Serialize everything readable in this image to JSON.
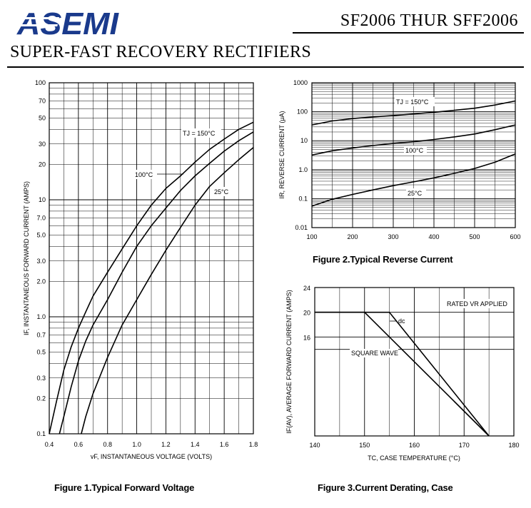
{
  "header": {
    "logo_text": "ASEMI",
    "part_range": "SF2006 THUR SFF2006",
    "family": "SUPER-FAST RECOVERY RECTIFIERS"
  },
  "colors": {
    "logo": "#1a3a8c",
    "ink": "#000000",
    "grid": "#000000"
  },
  "chart_data": [
    {
      "id": "fig1",
      "type": "line",
      "title": "Figure 1.Typical Forward Voltage",
      "xlabel": "vF, INSTANTANEOUS VOLTAGE (VOLTS)",
      "ylabel": "IF, INSTANTANEOUS FORWARD CURRENT (AMPS)",
      "xscale": "linear",
      "yscale": "log",
      "xlim": [
        0.4,
        1.8
      ],
      "ylim": [
        0.1,
        100
      ],
      "grid": true,
      "x_tick_labels": [
        "0.4",
        "0.6",
        "0.8",
        "1.0",
        "1.2",
        "1.4",
        "1.6",
        "1.8"
      ],
      "y_tick_labels": [
        "0.1",
        "0.2",
        "0.3",
        "0.5",
        "0.7",
        "1.0",
        "2.0",
        "3.0",
        "5.0",
        "7.0",
        "10",
        "20",
        "30",
        "50",
        "70",
        "100"
      ],
      "series": [
        {
          "name": "TJ = 150°C",
          "x": [
            0.4,
            0.45,
            0.5,
            0.55,
            0.6,
            0.65,
            0.7,
            0.8,
            0.9,
            1.0,
            1.1,
            1.2,
            1.3,
            1.4,
            1.5,
            1.6,
            1.7,
            1.8
          ],
          "y": [
            0.1,
            0.19,
            0.35,
            0.55,
            0.8,
            1.1,
            1.5,
            2.4,
            3.8,
            6.0,
            9.0,
            12.5,
            16.0,
            21.0,
            27.0,
            33.0,
            40.0,
            46.0
          ]
        },
        {
          "name": "100°C",
          "x": [
            0.47,
            0.5,
            0.55,
            0.6,
            0.65,
            0.7,
            0.8,
            0.9,
            1.0,
            1.1,
            1.2,
            1.3,
            1.4,
            1.5,
            1.6,
            1.7,
            1.8
          ],
          "y": [
            0.1,
            0.14,
            0.25,
            0.42,
            0.62,
            0.85,
            1.4,
            2.4,
            4.0,
            6.0,
            8.5,
            12.0,
            16.0,
            20.5,
            26.0,
            32.0,
            38.0
          ]
        },
        {
          "name": "25°C",
          "x": [
            0.62,
            0.65,
            0.7,
            0.8,
            0.9,
            1.0,
            1.1,
            1.2,
            1.3,
            1.4,
            1.5,
            1.6,
            1.7,
            1.8
          ],
          "y": [
            0.1,
            0.14,
            0.22,
            0.45,
            0.85,
            1.4,
            2.3,
            3.7,
            5.8,
            9.0,
            13.0,
            17.0,
            22.0,
            28.0
          ]
        }
      ]
    },
    {
      "id": "fig2",
      "type": "line",
      "title": "Figure 2.Typical Reverse Current",
      "xlabel": "",
      "ylabel": "IR, REVERSE CURRENT (μA)",
      "xscale": "linear",
      "yscale": "log",
      "xlim": [
        100,
        600
      ],
      "ylim": [
        0.01,
        1000
      ],
      "grid": true,
      "x_tick_labels": [
        "100",
        "200",
        "300",
        "400",
        "500",
        "600"
      ],
      "y_tick_labels": [
        "0.01",
        "0.1",
        "1.0",
        "10",
        "100",
        "1000"
      ],
      "series": [
        {
          "name": "TJ = 150°C",
          "x": [
            100,
            150,
            200,
            250,
            300,
            350,
            400,
            450,
            500,
            550,
            600
          ],
          "y": [
            35,
            48,
            58,
            66,
            74,
            84,
            96,
            112,
            132,
            170,
            235
          ]
        },
        {
          "name": "100°C",
          "x": [
            100,
            150,
            200,
            250,
            300,
            350,
            400,
            450,
            500,
            550,
            600
          ],
          "y": [
            3.2,
            4.5,
            5.6,
            6.8,
            8.0,
            9.2,
            11.0,
            13.5,
            17.0,
            24.0,
            35.0
          ]
        },
        {
          "name": "25°C",
          "x": [
            100,
            150,
            200,
            250,
            300,
            350,
            400,
            450,
            500,
            550,
            600
          ],
          "y": [
            0.055,
            0.095,
            0.14,
            0.2,
            0.28,
            0.38,
            0.52,
            0.75,
            1.1,
            1.8,
            3.5
          ]
        }
      ]
    },
    {
      "id": "fig3",
      "type": "line",
      "title": "Figure 3.Current Derating, Case",
      "xlabel": "TC, CASE TEMPERATURE (°C)",
      "ylabel": "IF(AV), AVERAGE FORWARD CURRENT (AMPS)",
      "xscale": "linear",
      "yscale": "linear",
      "xlim": [
        140,
        180
      ],
      "ylim": [
        0,
        24
      ],
      "grid": true,
      "x_tick_labels": [
        "140",
        "150",
        "160",
        "170",
        "180"
      ],
      "y_tick_labels": [
        "24",
        "20",
        "16"
      ],
      "annotations": [
        "RATED VR APPLIED",
        "SQUARE WAVE"
      ],
      "series": [
        {
          "name": "dc",
          "x": [
            140,
            155,
            175
          ],
          "y": [
            20,
            20,
            0
          ]
        },
        {
          "name": "SQUARE WAVE",
          "x": [
            140,
            150,
            175
          ],
          "y": [
            20,
            20,
            0
          ]
        }
      ]
    }
  ],
  "captions": {
    "fig1": "Figure 1.Typical Forward Voltage",
    "fig2": "Figure 2.Typical Reverse Current",
    "fig3": "Figure 3.Current Derating, Case"
  }
}
